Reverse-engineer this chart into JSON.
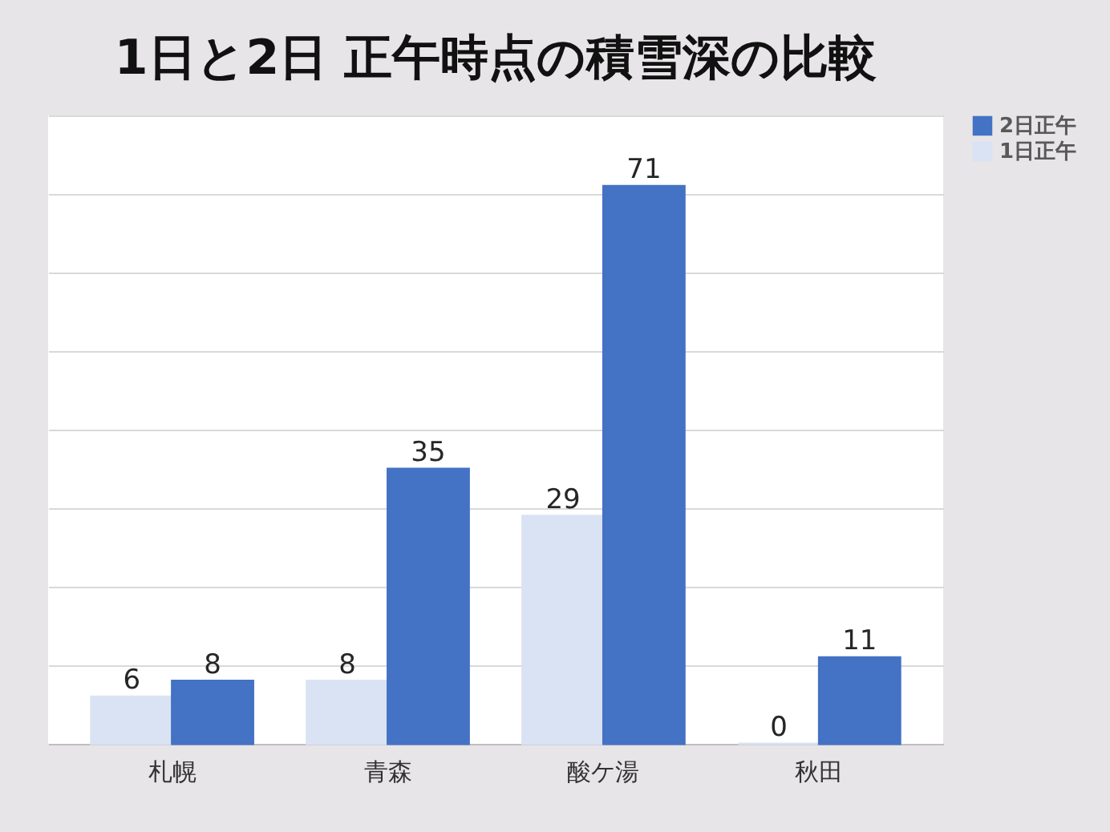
{
  "chart_data": {
    "type": "bar",
    "title": "1日と2日  正午時点の積雪深の比較",
    "categories": [
      "札幌",
      "青森",
      "酸ケ湯",
      "秋田"
    ],
    "series": [
      {
        "name": "1日正午",
        "color": "#dae3f3",
        "values": [
          6,
          8,
          29,
          0
        ]
      },
      {
        "name": "2日正午",
        "color": "#4472c4",
        "values": [
          8,
          35,
          71,
          11
        ]
      }
    ],
    "ylim": [
      0,
      80
    ],
    "yticks": [
      {
        "value": 0,
        "label": null
      },
      {
        "value": 10,
        "label": null
      },
      {
        "value": 20,
        "label": null
      },
      {
        "value": 30,
        "label": null
      },
      {
        "value": 40,
        "label": null
      },
      {
        "value": 50,
        "label": null
      },
      {
        "value": 60,
        "label": null
      },
      {
        "value": 70,
        "label": null
      },
      {
        "value": 80,
        "label": null
      }
    ],
    "tick_labels": "x",
    "grid": "y",
    "legend": "right",
    "data_labels": true
  }
}
